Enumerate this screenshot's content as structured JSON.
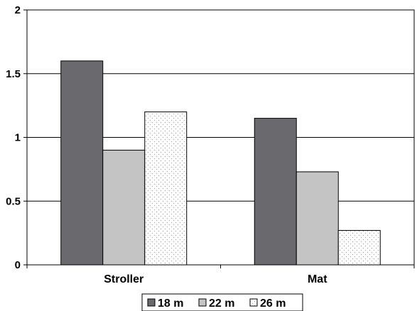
{
  "chart_data": {
    "type": "bar",
    "categories": [
      "Stroller",
      "Mat"
    ],
    "series": [
      {
        "name": "18 m",
        "values": [
          1.6,
          1.15
        ],
        "color": "#6a6a6e",
        "fill": "solid"
      },
      {
        "name": "22 m",
        "values": [
          0.9,
          0.73
        ],
        "color": "#c4c4c4",
        "fill": "solid"
      },
      {
        "name": "26 m",
        "values": [
          1.2,
          0.27
        ],
        "color": "#ffffff",
        "fill": "dotted"
      }
    ],
    "ylim": [
      0,
      2
    ],
    "yticks": [
      0,
      0.5,
      1,
      1.5,
      2
    ],
    "ytick_labels": [
      "0",
      "0.5",
      "1",
      "1.5",
      "2"
    ],
    "grid": true,
    "legend_position": "bottom",
    "title": "",
    "xlabel": "",
    "ylabel": ""
  }
}
